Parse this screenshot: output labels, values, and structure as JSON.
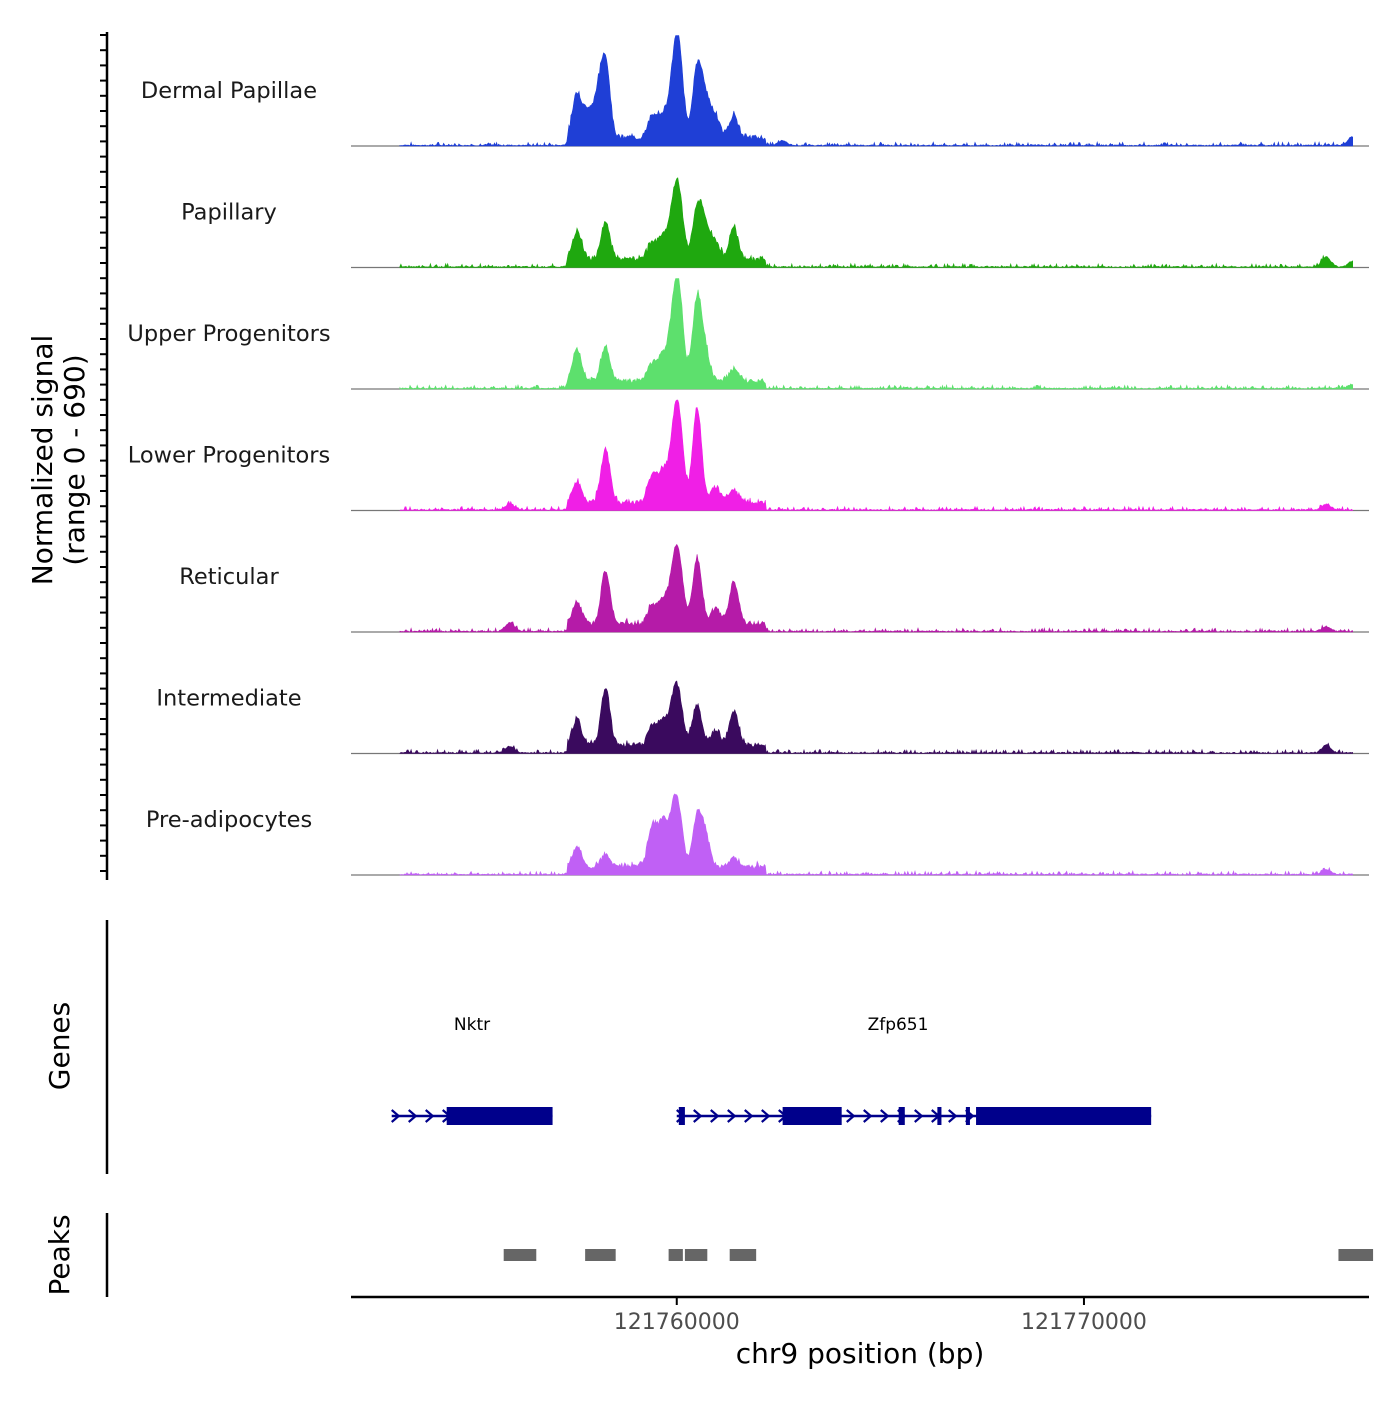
{
  "chart_data": {
    "type": "area",
    "chromosome": "chr9",
    "xlabel": "chr9 position (bp)",
    "ylabel": "Normalized signal",
    "ylabel_range": "(range 0 - 690)",
    "xlim": [
      121752000,
      121777000
    ],
    "x_ticks": [
      121760000,
      121770000
    ],
    "x_tick_labels": [
      "121760000",
      "121770000"
    ],
    "signal_range": [
      0,
      690
    ],
    "tracks": [
      {
        "name": "Dermal Papillae",
        "color": "#1F3FD6",
        "peaks": [
          [
            121757550,
            0.4
          ],
          [
            121757800,
            0.22
          ],
          [
            121758050,
            0.34
          ],
          [
            121758250,
            0.7
          ],
          [
            121759400,
            0.18
          ],
          [
            121759650,
            0.2
          ],
          [
            121759900,
            0.42
          ],
          [
            121760050,
            0.75
          ],
          [
            121760500,
            0.62
          ],
          [
            121760700,
            0.35
          ],
          [
            121760950,
            0.2
          ],
          [
            121761400,
            0.2
          ],
          [
            121762600,
            0.04
          ],
          [
            121776600,
            0.08
          ]
        ]
      },
      {
        "name": "Papillary",
        "color": "#1FA80F",
        "peaks": [
          [
            121757550,
            0.26
          ],
          [
            121758250,
            0.34
          ],
          [
            121759400,
            0.14
          ],
          [
            121759650,
            0.2
          ],
          [
            121759900,
            0.34
          ],
          [
            121760050,
            0.56
          ],
          [
            121760500,
            0.46
          ],
          [
            121760700,
            0.3
          ],
          [
            121760950,
            0.16
          ],
          [
            121761400,
            0.28
          ],
          [
            121775950,
            0.09
          ],
          [
            121776600,
            0.05
          ]
        ]
      },
      {
        "name": "Upper Progenitors",
        "color": "#5DE06D",
        "peaks": [
          [
            121757550,
            0.28
          ],
          [
            121758250,
            0.3
          ],
          [
            121759400,
            0.16
          ],
          [
            121759650,
            0.22
          ],
          [
            121759900,
            0.44
          ],
          [
            121760050,
            0.76
          ],
          [
            121760500,
            0.74
          ],
          [
            121760700,
            0.25
          ],
          [
            121761400,
            0.1
          ],
          [
            121776600,
            0.04
          ]
        ]
      },
      {
        "name": "Lower Progenitors",
        "color": "#F01FE6",
        "peaks": [
          [
            121755900,
            0.05
          ],
          [
            121757550,
            0.18
          ],
          [
            121758250,
            0.48
          ],
          [
            121759400,
            0.24
          ],
          [
            121759650,
            0.26
          ],
          [
            121759900,
            0.42
          ],
          [
            121760050,
            0.72
          ],
          [
            121760500,
            0.86
          ],
          [
            121760950,
            0.14
          ],
          [
            121761400,
            0.12
          ],
          [
            121775950,
            0.05
          ]
        ]
      },
      {
        "name": "Reticular",
        "color": "#B51BA8",
        "peaks": [
          [
            121755900,
            0.08
          ],
          [
            121757550,
            0.2
          ],
          [
            121758250,
            0.48
          ],
          [
            121759400,
            0.16
          ],
          [
            121759650,
            0.2
          ],
          [
            121759900,
            0.36
          ],
          [
            121760050,
            0.54
          ],
          [
            121760500,
            0.6
          ],
          [
            121760950,
            0.14
          ],
          [
            121761400,
            0.38
          ],
          [
            121775950,
            0.04
          ]
        ]
      },
      {
        "name": "Intermediate",
        "color": "#3A0A5E",
        "peaks": [
          [
            121755900,
            0.06
          ],
          [
            121757550,
            0.24
          ],
          [
            121758250,
            0.52
          ],
          [
            121759400,
            0.18
          ],
          [
            121759650,
            0.2
          ],
          [
            121759900,
            0.3
          ],
          [
            121760050,
            0.4
          ],
          [
            121760500,
            0.36
          ],
          [
            121760950,
            0.14
          ],
          [
            121761400,
            0.32
          ],
          [
            121775950,
            0.07
          ]
        ]
      },
      {
        "name": "Pre-adipocytes",
        "color": "#C060F5",
        "peaks": [
          [
            121757550,
            0.18
          ],
          [
            121758250,
            0.12
          ],
          [
            121759400,
            0.36
          ],
          [
            121759650,
            0.38
          ],
          [
            121759900,
            0.4
          ],
          [
            121760050,
            0.42
          ],
          [
            121760500,
            0.44
          ],
          [
            121760700,
            0.28
          ],
          [
            121761400,
            0.08
          ],
          [
            121775950,
            0.04
          ]
        ]
      }
    ],
    "genes": [
      {
        "name": "Nktr",
        "start": 121753000,
        "end": 121756950,
        "strand": "+",
        "exons": [
          [
            121754350,
            121756950
          ]
        ]
      },
      {
        "name": "Zfp651",
        "start": 121760000,
        "end": 121771650,
        "strand": "+",
        "exons": [
          [
            121760050,
            121760200
          ],
          [
            121762600,
            121764050
          ],
          [
            121765450,
            121765600
          ],
          [
            121766400,
            121766500
          ],
          [
            121767100,
            121767200
          ],
          [
            121767350,
            121771650
          ]
        ]
      }
    ],
    "gene_color": "#00008B",
    "genes_label": "Genes",
    "peaks_label": "Peaks",
    "peak_color": "#666666",
    "peak_regions": [
      [
        121755750,
        121756550
      ],
      [
        121757750,
        121758500
      ],
      [
        121759800,
        121760150
      ],
      [
        121760200,
        121760750
      ],
      [
        121761300,
        121761950
      ],
      [
        121776250,
        121777100
      ]
    ]
  }
}
